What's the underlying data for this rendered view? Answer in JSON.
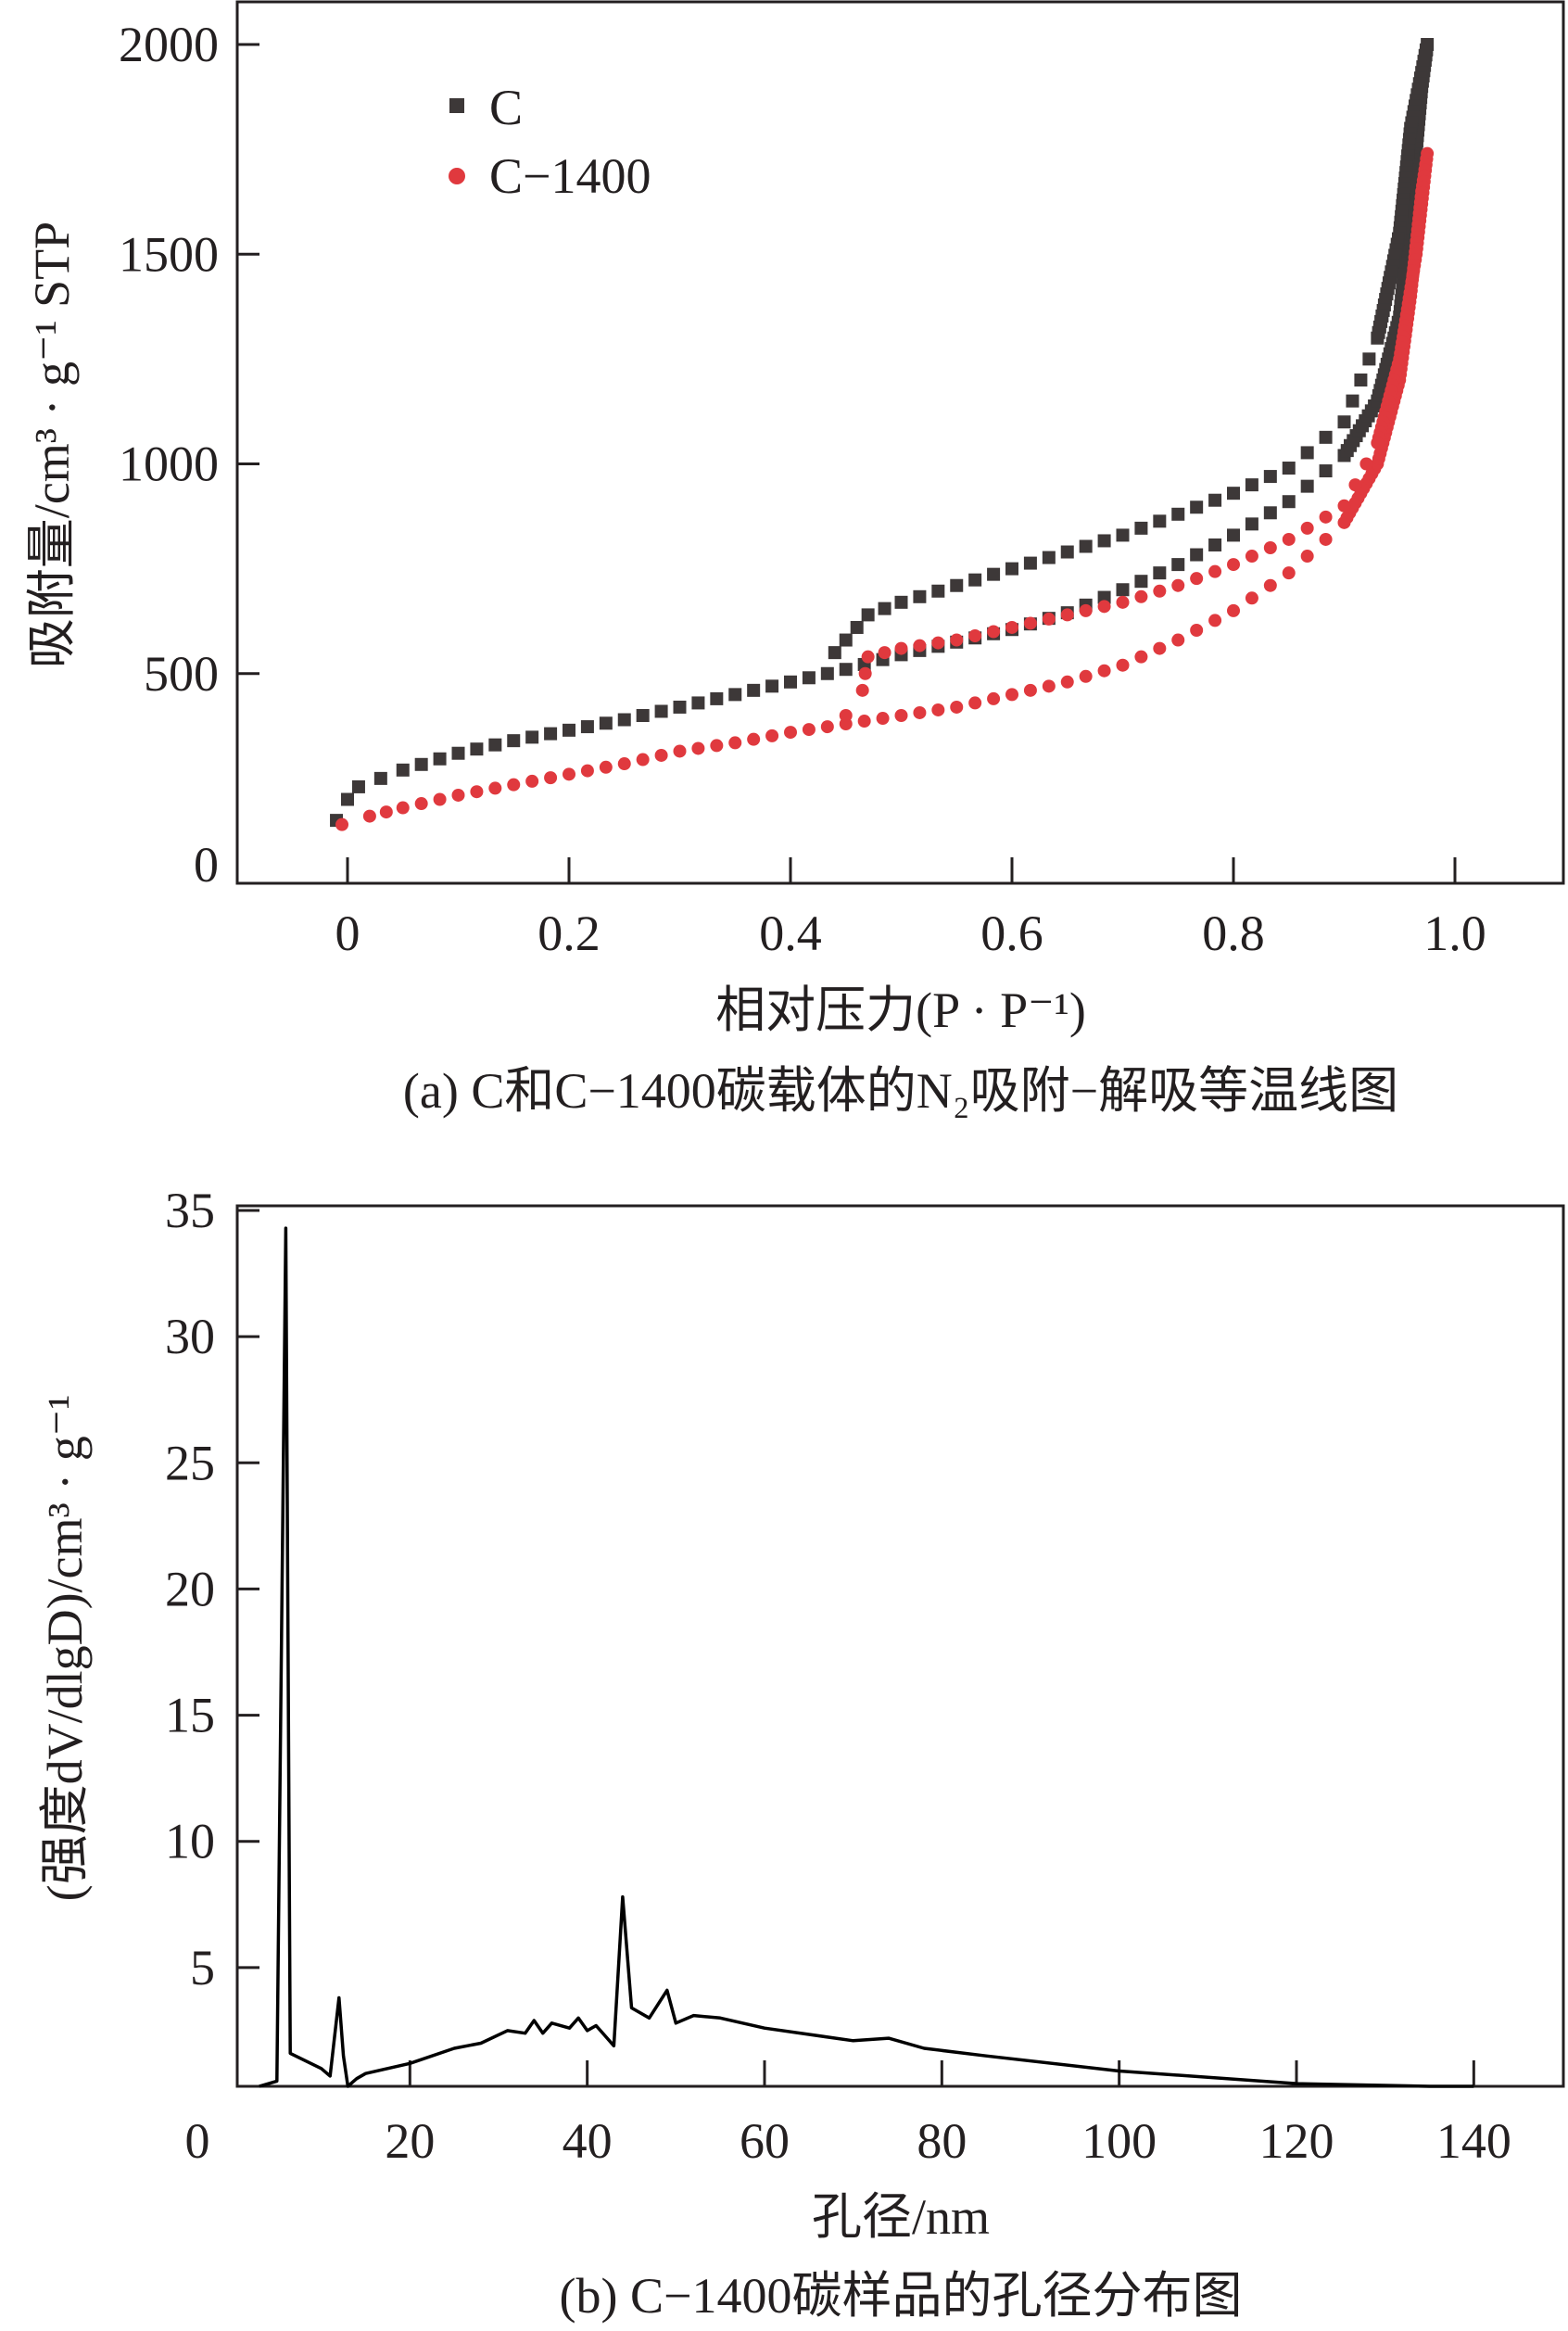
{
  "chart_data": [
    {
      "type": "scatter",
      "caption": "(a) C和C−1400碳载体的N₂吸附−解吸等温线图",
      "xlabel": "相对压力(P · P⁻¹)",
      "ylabel": "吸附量/cm³ · g⁻¹ STP",
      "xlim": [
        -0.1,
        1.1
      ],
      "ylim": [
        0,
        2000
      ],
      "xticks": [
        "0",
        "0.2",
        "0.4",
        "0.6",
        "0.8",
        "1.0"
      ],
      "xtick_values": [
        0,
        0.2,
        0.4,
        0.6,
        0.8,
        1.0
      ],
      "yticks": [
        "0",
        "500",
        "1000",
        "1500",
        "2000"
      ],
      "ytick_values": [
        0,
        500,
        1000,
        1500,
        2000
      ],
      "legend_position": "top-left",
      "grid": false,
      "series": [
        {
          "name": "C",
          "marker": "square",
          "color": "#3d3838",
          "adsorption": [
            [
              -0.01,
              150
            ],
            [
              0,
              200
            ],
            [
              0.01,
              230
            ],
            [
              0.05,
              270
            ],
            [
              0.1,
              310
            ],
            [
              0.15,
              340
            ],
            [
              0.2,
              365
            ],
            [
              0.25,
              390
            ],
            [
              0.3,
              420
            ],
            [
              0.35,
              450
            ],
            [
              0.4,
              480
            ],
            [
              0.45,
              510
            ],
            [
              0.5,
              545
            ],
            [
              0.55,
              575
            ],
            [
              0.6,
              605
            ],
            [
              0.65,
              645
            ],
            [
              0.7,
              700
            ],
            [
              0.75,
              760
            ],
            [
              0.8,
              830
            ],
            [
              0.85,
              910
            ],
            [
              0.9,
              1020
            ],
            [
              0.93,
              1150
            ],
            [
              0.95,
              1350
            ],
            [
              0.96,
              1600
            ],
            [
              0.97,
              1900
            ],
            [
              0.975,
              2000
            ]
          ],
          "desorption": [
            [
              0.975,
              2000
            ],
            [
              0.96,
              1800
            ],
            [
              0.95,
              1550
            ],
            [
              0.93,
              1300
            ],
            [
              0.9,
              1100
            ],
            [
              0.85,
              990
            ],
            [
              0.8,
              930
            ],
            [
              0.75,
              880
            ],
            [
              0.7,
              830
            ],
            [
              0.65,
              790
            ],
            [
              0.6,
              750
            ],
            [
              0.55,
              710
            ],
            [
              0.5,
              670
            ],
            [
              0.47,
              640
            ],
            [
              0.45,
              580
            ],
            [
              0.43,
              520
            ]
          ]
        },
        {
          "name": "C−1400",
          "marker": "circle",
          "color": "#e0393e",
          "adsorption": [
            [
              -0.005,
              140
            ],
            [
              0.02,
              160
            ],
            [
              0.05,
              180
            ],
            [
              0.1,
              210
            ],
            [
              0.15,
              235
            ],
            [
              0.2,
              260
            ],
            [
              0.25,
              285
            ],
            [
              0.3,
              315
            ],
            [
              0.35,
              335
            ],
            [
              0.4,
              360
            ],
            [
              0.45,
              380
            ],
            [
              0.5,
              400
            ],
            [
              0.55,
              420
            ],
            [
              0.6,
              450
            ],
            [
              0.65,
              480
            ],
            [
              0.7,
              520
            ],
            [
              0.75,
              580
            ],
            [
              0.8,
              650
            ],
            [
              0.85,
              740
            ],
            [
              0.9,
              860
            ],
            [
              0.93,
              1000
            ],
            [
              0.95,
              1200
            ],
            [
              0.96,
              1400
            ],
            [
              0.97,
              1650
            ],
            [
              0.975,
              1740
            ]
          ],
          "desorption": [
            [
              0.975,
              1740
            ],
            [
              0.965,
              1500
            ],
            [
              0.95,
              1250
            ],
            [
              0.93,
              1050
            ],
            [
              0.9,
              900
            ],
            [
              0.85,
              820
            ],
            [
              0.8,
              760
            ],
            [
              0.75,
              710
            ],
            [
              0.7,
              670
            ],
            [
              0.65,
              640
            ],
            [
              0.6,
              610
            ],
            [
              0.55,
              580
            ],
            [
              0.5,
              560
            ],
            [
              0.47,
              540
            ],
            [
              0.465,
              460
            ],
            [
              0.45,
              400
            ],
            [
              0.43,
              370
            ]
          ]
        }
      ]
    },
    {
      "type": "line",
      "caption": "(b) C−1400碳样品的孔径分布图",
      "xlabel": "孔径/nm",
      "ylabel": "(强度dV/dlgD)/cm³ · g⁻¹",
      "xlim": [
        0,
        150
      ],
      "ylim": [
        0,
        35
      ],
      "xticks": [
        "0",
        "20",
        "40",
        "60",
        "80",
        "100",
        "120",
        "140"
      ],
      "xtick_values": [
        0,
        20,
        40,
        60,
        80,
        100,
        120,
        140
      ],
      "yticks": [
        "5",
        "10",
        "15",
        "20",
        "25",
        "30",
        "35"
      ],
      "ytick_values": [
        5,
        10,
        15,
        20,
        25,
        30,
        35
      ],
      "grid": false,
      "color": "#000000",
      "points": [
        [
          3,
          0
        ],
        [
          5,
          0.5
        ],
        [
          6,
          34.3
        ],
        [
          6.5,
          1.6
        ],
        [
          10,
          1.0
        ],
        [
          11,
          0.7
        ],
        [
          12,
          3.8
        ],
        [
          12.5,
          1.5
        ],
        [
          13,
          0.2
        ],
        [
          14,
          0.6
        ],
        [
          15,
          0.8
        ],
        [
          20,
          1.2
        ],
        [
          25,
          1.8
        ],
        [
          28,
          2.0
        ],
        [
          31,
          2.5
        ],
        [
          33,
          2.4
        ],
        [
          34,
          2.9
        ],
        [
          35,
          2.4
        ],
        [
          36,
          2.8
        ],
        [
          38,
          2.6
        ],
        [
          39,
          3.0
        ],
        [
          40,
          2.5
        ],
        [
          41,
          2.7
        ],
        [
          42,
          2.3
        ],
        [
          43,
          1.9
        ],
        [
          44,
          7.8
        ],
        [
          45,
          3.4
        ],
        [
          47,
          3.0
        ],
        [
          49,
          4.1
        ],
        [
          50,
          2.8
        ],
        [
          52,
          3.1
        ],
        [
          55,
          3.0
        ],
        [
          60,
          2.6
        ],
        [
          70,
          2.1
        ],
        [
          74,
          2.2
        ],
        [
          78,
          1.8
        ],
        [
          85,
          1.5
        ],
        [
          100,
          0.9
        ],
        [
          120,
          0.4
        ],
        [
          135,
          0.1
        ],
        [
          140,
          0.05
        ]
      ]
    }
  ]
}
